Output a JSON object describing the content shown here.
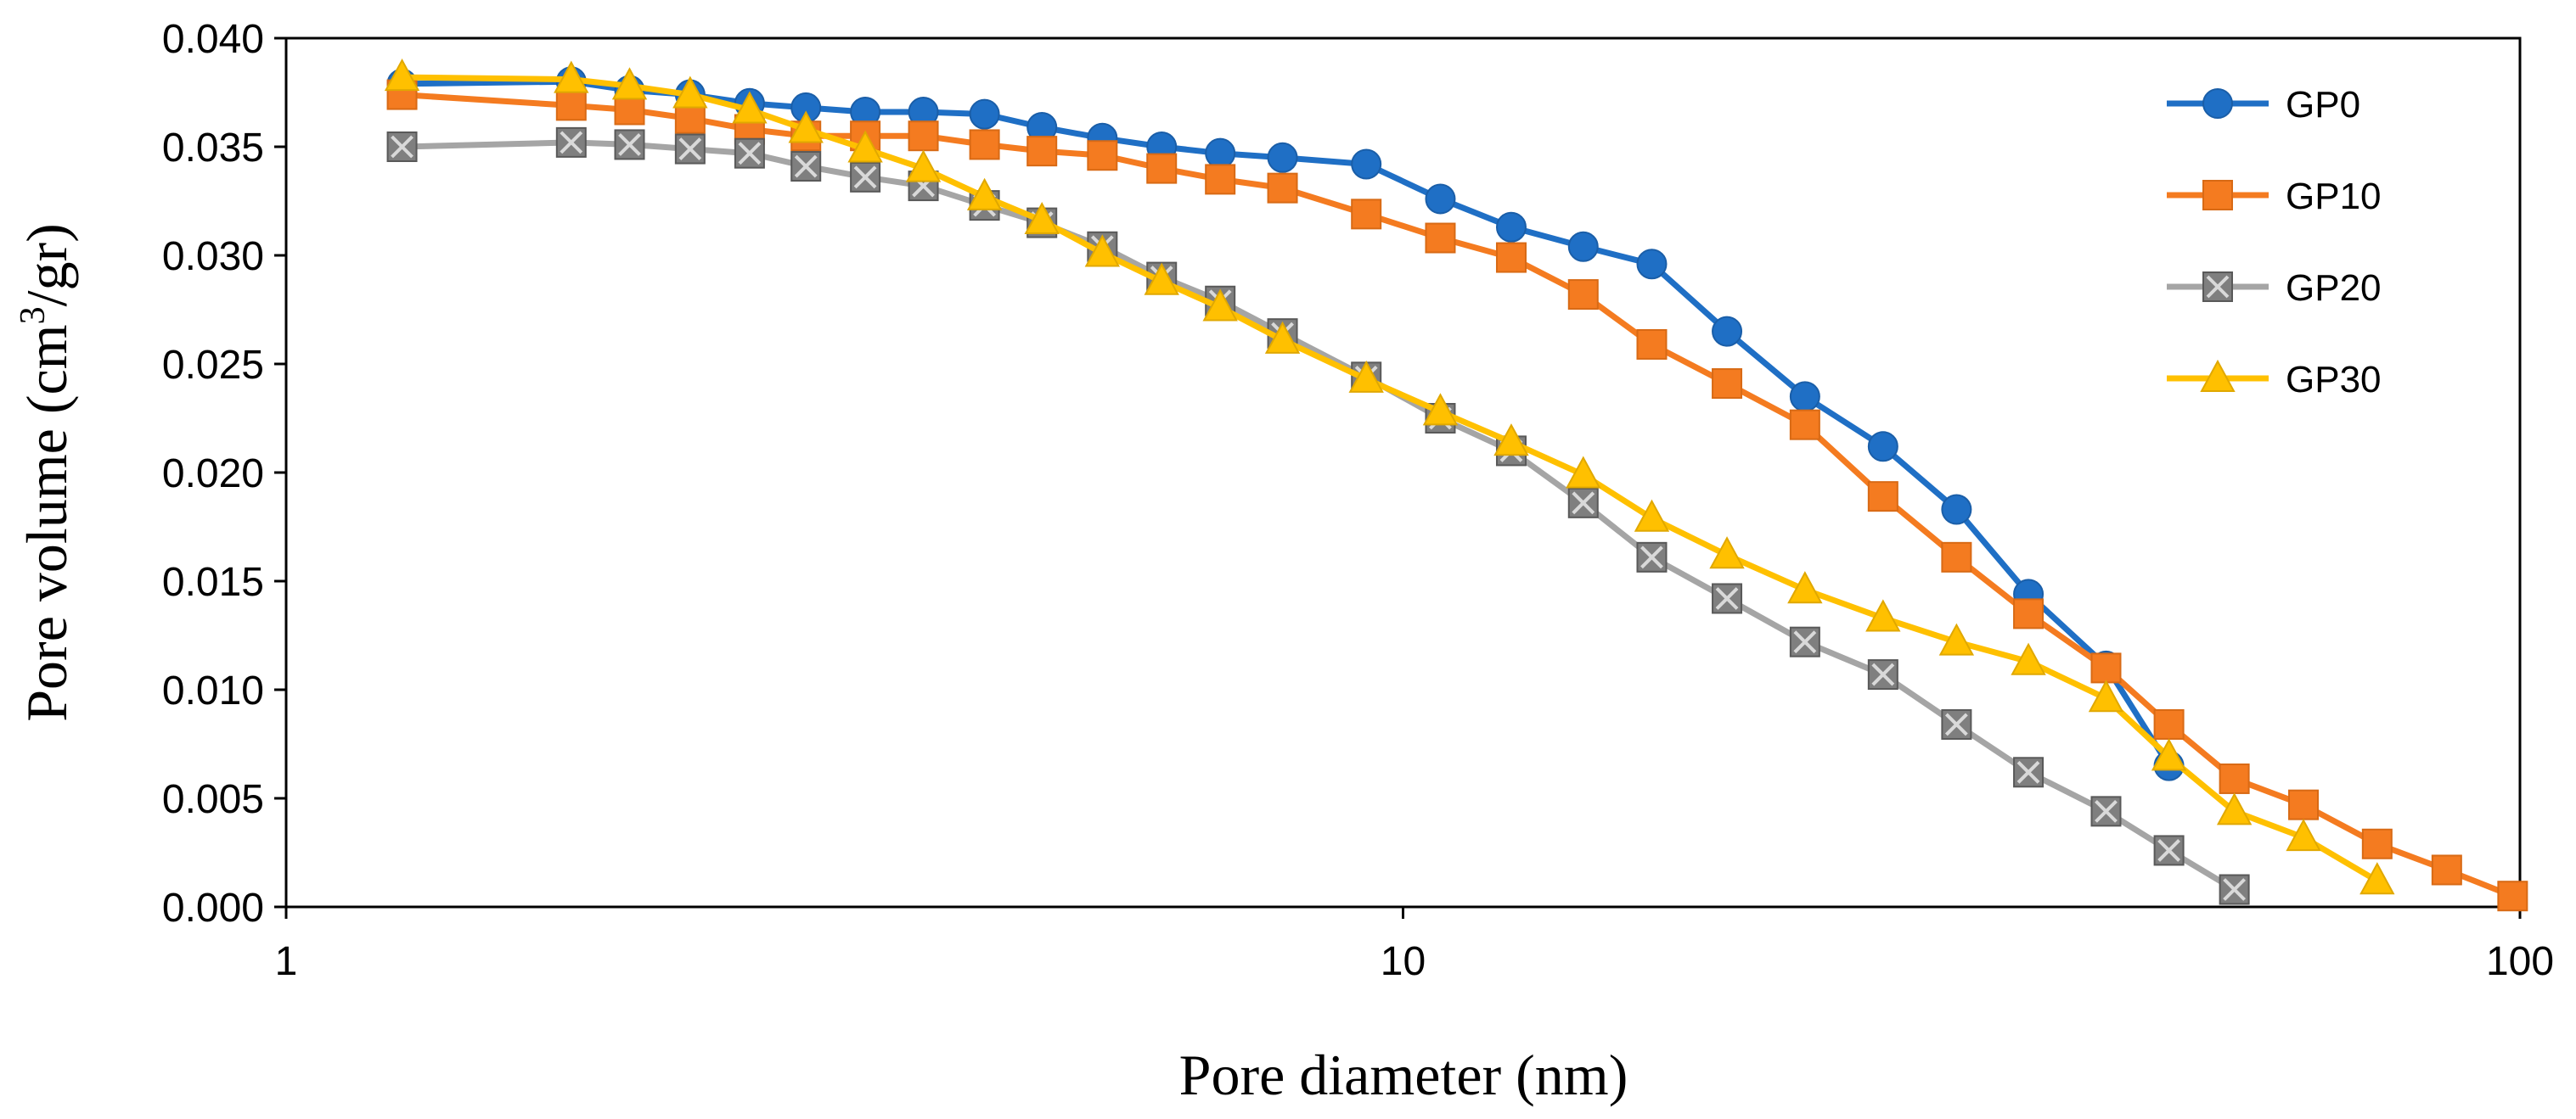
{
  "chart_data": {
    "type": "line",
    "title": "",
    "xlabel": "Pore diameter (nm)",
    "ylabel_parts": {
      "prefix": "Pore volume (cm",
      "sup": "3",
      "suffix": "/gr)"
    },
    "xscale": "log",
    "xlim": [
      1,
      100
    ],
    "ylim": [
      0,
      0.04
    ],
    "xticks": [
      1,
      10,
      100
    ],
    "xtick_labels": [
      "1",
      "10",
      "100"
    ],
    "yticks": [
      0,
      0.005,
      0.01,
      0.015,
      0.02,
      0.025,
      0.03,
      0.035,
      0.04
    ],
    "ytick_labels": [
      "0.000",
      "0.005",
      "0.010",
      "0.015",
      "0.020",
      "0.025",
      "0.030",
      "0.035",
      "0.040"
    ],
    "grid": false,
    "legend_position": "top-right",
    "series": [
      {
        "name": "GP0",
        "color": "#1f6fc5",
        "marker": "circle",
        "x": [
          1.27,
          1.8,
          2.03,
          2.3,
          2.6,
          2.92,
          3.3,
          3.72,
          4.22,
          4.75,
          5.38,
          6.08,
          6.86,
          7.8,
          9.27,
          10.8,
          12.5,
          14.5,
          16.7,
          19.5,
          22.9,
          26.9,
          31.3,
          36.3,
          42.6,
          48.5
        ],
        "y": [
          0.0379,
          0.038,
          0.0376,
          0.0374,
          0.037,
          0.0368,
          0.0366,
          0.0366,
          0.0365,
          0.0359,
          0.0354,
          0.035,
          0.0347,
          0.0345,
          0.0342,
          0.0326,
          0.0313,
          0.0304,
          0.0296,
          0.0265,
          0.0235,
          0.0212,
          0.0183,
          0.0144,
          0.0111,
          0.0065
        ]
      },
      {
        "name": "GP10",
        "color": "#f47b20",
        "marker": "square",
        "x": [
          1.27,
          1.8,
          2.03,
          2.3,
          2.6,
          2.92,
          3.3,
          3.72,
          4.22,
          4.75,
          5.38,
          6.08,
          6.86,
          7.8,
          9.27,
          10.8,
          12.5,
          14.5,
          16.7,
          19.5,
          22.9,
          26.9,
          31.3,
          36.3,
          42.6,
          48.5,
          55.5,
          64.0,
          74.5,
          86.0,
          98.5
        ],
        "y": [
          0.0374,
          0.0369,
          0.0367,
          0.0363,
          0.0358,
          0.0355,
          0.0355,
          0.0355,
          0.0351,
          0.0348,
          0.0346,
          0.034,
          0.0335,
          0.0331,
          0.0319,
          0.0308,
          0.0299,
          0.0282,
          0.0259,
          0.0241,
          0.0222,
          0.0189,
          0.0161,
          0.0135,
          0.011,
          0.0084,
          0.0059,
          0.0047,
          0.0029,
          0.0017,
          0.0005
        ]
      },
      {
        "name": "GP20",
        "color": "#a5a5a5",
        "marker": "x-square",
        "x": [
          1.27,
          1.8,
          2.03,
          2.3,
          2.6,
          2.92,
          3.3,
          3.72,
          4.22,
          4.75,
          5.38,
          6.08,
          6.86,
          7.8,
          9.27,
          10.8,
          12.5,
          14.5,
          16.7,
          19.5,
          22.9,
          26.9,
          31.3,
          36.3,
          42.6,
          48.5,
          55.5
        ],
        "y": [
          0.035,
          0.0352,
          0.0351,
          0.0349,
          0.0347,
          0.0341,
          0.0336,
          0.0332,
          0.0323,
          0.0315,
          0.0304,
          0.029,
          0.0279,
          0.0264,
          0.0244,
          0.0225,
          0.021,
          0.0186,
          0.0161,
          0.0142,
          0.0122,
          0.0107,
          0.0084,
          0.0062,
          0.0044,
          0.0026,
          0.0008
        ]
      },
      {
        "name": "GP30",
        "color": "#ffc000",
        "marker": "triangle",
        "x": [
          1.27,
          1.8,
          2.03,
          2.3,
          2.6,
          2.92,
          3.3,
          3.72,
          4.22,
          4.75,
          5.38,
          6.08,
          6.86,
          7.8,
          9.27,
          10.8,
          12.5,
          14.5,
          16.7,
          19.5,
          22.9,
          26.9,
          31.3,
          36.3,
          42.6,
          48.5,
          55.5,
          64.0,
          74.5
        ],
        "y": [
          0.0382,
          0.0381,
          0.0378,
          0.0374,
          0.0367,
          0.0358,
          0.0349,
          0.034,
          0.0327,
          0.0316,
          0.0301,
          0.0288,
          0.0276,
          0.0261,
          0.0243,
          0.0228,
          0.0214,
          0.0199,
          0.0179,
          0.0162,
          0.0146,
          0.0133,
          0.0122,
          0.0113,
          0.0096,
          0.0069,
          0.0044,
          0.0032,
          0.0012
        ]
      }
    ]
  }
}
